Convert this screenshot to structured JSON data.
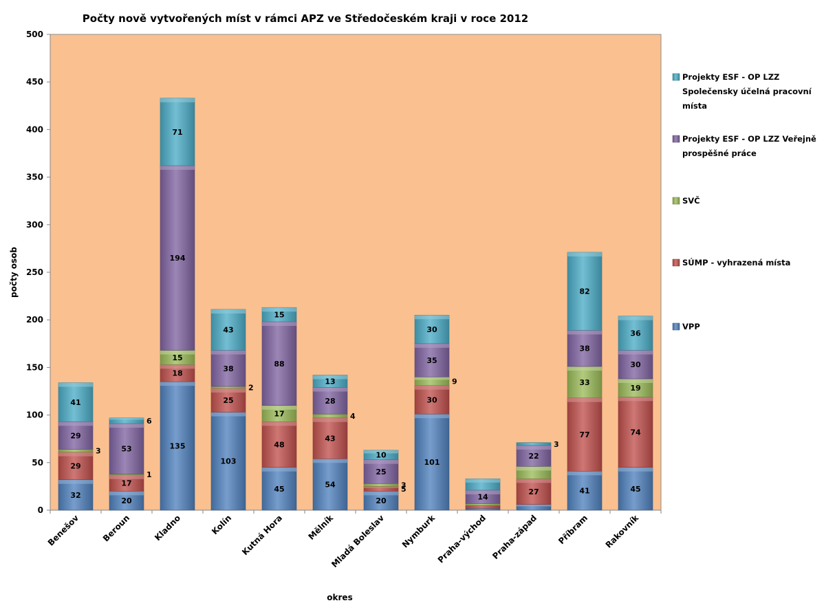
{
  "chart_data": {
    "type": "bar",
    "stacked": true,
    "title": "Počty nově vytvořených míst v rámci APZ ve Středočeském kraji v roce 2012",
    "xlabel": "okres",
    "ylabel": "počty osob",
    "ylim": [
      0,
      500
    ],
    "yticks": [
      0,
      50,
      100,
      150,
      200,
      250,
      300,
      350,
      400,
      450,
      500
    ],
    "grid": false,
    "legend_position": "right",
    "plot_background": "#FAC090",
    "categories": [
      "Benešov",
      "Beroun",
      "Kladno",
      "Kolín",
      "Kutná Hora",
      "Mělník",
      "Mladá Boleslav",
      "Nymburk",
      "Praha-východ",
      "Praha-západ",
      "Příbram",
      "Rakovník"
    ],
    "series": [
      {
        "name": "VPP",
        "color": "#4F81BD",
        "values": [
          32,
          20,
          135,
          103,
          45,
          54,
          20,
          101,
          2,
          6,
          41,
          45
        ],
        "labels": [
          "32",
          "20",
          "135",
          "103",
          "45",
          "54",
          "20",
          "101",
          "",
          "",
          "41",
          "45"
        ]
      },
      {
        "name": "SÚMP - vyhrazená místa",
        "color": "#C0504D",
        "values": [
          29,
          17,
          18,
          25,
          48,
          43,
          5,
          30,
          3,
          27,
          77,
          74
        ],
        "labels": [
          "29",
          "17",
          "18",
          "25",
          "48",
          "43",
          "5",
          "30",
          "",
          "27",
          "77",
          "74"
        ]
      },
      {
        "name": "SVČ",
        "color": "#9BBB59",
        "values": [
          3,
          1,
          15,
          2,
          17,
          4,
          3,
          9,
          2,
          13,
          33,
          19
        ],
        "labels": [
          "3",
          "1",
          "15",
          "2",
          "17",
          "4",
          "3",
          "9",
          "",
          "",
          "33",
          "19"
        ]
      },
      {
        "name": "Projekty ESF - OP LZZ Veřejně prospěšné práce",
        "color": "#8064A2",
        "values": [
          29,
          53,
          194,
          38,
          88,
          28,
          25,
          35,
          14,
          22,
          38,
          30
        ],
        "labels": [
          "29",
          "53",
          "194",
          "38",
          "88",
          "28",
          "25",
          "35",
          "14",
          "22",
          "38",
          "30"
        ]
      },
      {
        "name": "Projekty ESF - OP LZZ Společensky účelná pracovní místa",
        "color": "#4BACC6",
        "values": [
          41,
          6,
          71,
          43,
          15,
          13,
          10,
          30,
          12,
          3,
          82,
          36
        ],
        "labels": [
          "41",
          "6",
          "71",
          "43",
          "15",
          "13",
          "10",
          "30",
          "",
          "3",
          "82",
          "36"
        ]
      }
    ],
    "legend_order": [
      4,
      3,
      2,
      1,
      0
    ],
    "legend_lines": [
      [
        "Projekty ESF - OP LZZ",
        "Společensky účelná pracovní",
        "místa"
      ],
      [
        "Projekty ESF - OP LZZ Veřejně",
        "prospěšné práce"
      ],
      [
        "SVČ"
      ],
      [
        "SÚMP - vyhrazená místa"
      ],
      [
        "VPP"
      ]
    ]
  }
}
